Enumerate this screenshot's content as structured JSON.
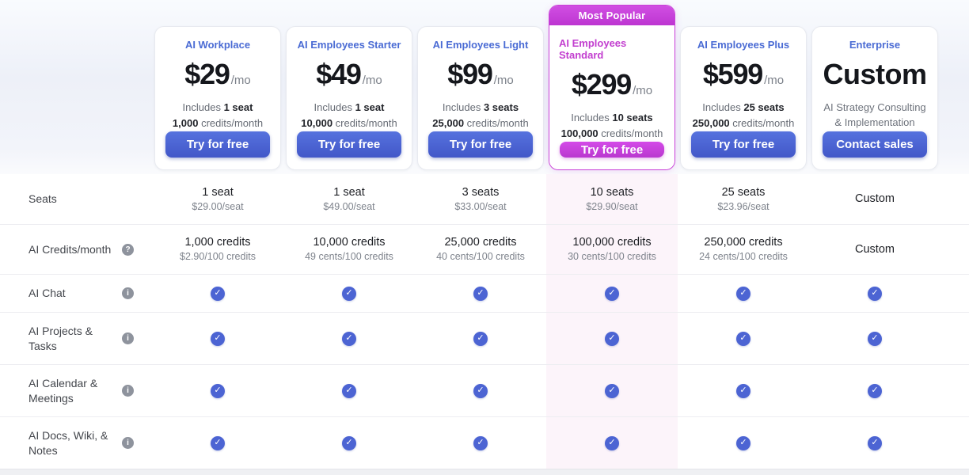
{
  "badge_label": "Most Popular",
  "icons": {
    "check": "✓",
    "info": "i",
    "help": "?"
  },
  "colors": {
    "accent_blue": "#4a66d4",
    "accent_magenta": "#c93fd6",
    "highlight_column_bg": "#fcf4fa",
    "check_circle": "#4c64d3"
  },
  "plans": [
    {
      "name": "AI Workplace",
      "price": "$29",
      "period": "/mo",
      "includes_prefix": "Includes",
      "includes_bold": "1 seat",
      "credits_bold": "1,000",
      "credits_suffix": "credits/month",
      "cta": "Try for free"
    },
    {
      "name": "AI Employees Starter",
      "price": "$49",
      "period": "/mo",
      "includes_prefix": "Includes",
      "includes_bold": "1 seat",
      "credits_bold": "10,000",
      "credits_suffix": "credits/month",
      "cta": "Try for free"
    },
    {
      "name": "AI Employees Light",
      "price": "$99",
      "period": "/mo",
      "includes_prefix": "Includes",
      "includes_bold": "3 seats",
      "credits_bold": "25,000",
      "credits_suffix": "credits/month",
      "cta": "Try for free"
    },
    {
      "name": "AI Employees Standard",
      "price": "$299",
      "period": "/mo",
      "includes_prefix": "Includes",
      "includes_bold": "10 seats",
      "credits_bold": "100,000",
      "credits_suffix": "credits/month",
      "cta": "Try for free"
    },
    {
      "name": "AI Employees Plus",
      "price": "$599",
      "period": "/mo",
      "includes_prefix": "Includes",
      "includes_bold": "25 seats",
      "credits_bold": "250,000",
      "credits_suffix": "credits/month",
      "cta": "Try for free"
    },
    {
      "name": "Enterprise",
      "price": "Custom",
      "subtitle": "AI Strategy Consulting & Implementation",
      "cta": "Contact sales"
    }
  ],
  "table": {
    "rows": [
      {
        "label": "Seats",
        "cells": [
          {
            "main": "1 seat",
            "sub": "$29.00/seat"
          },
          {
            "main": "1 seat",
            "sub": "$49.00/seat"
          },
          {
            "main": "3 seats",
            "sub": "$33.00/seat"
          },
          {
            "main": "10 seats",
            "sub": "$29.90/seat"
          },
          {
            "main": "25 seats",
            "sub": "$23.96/seat"
          },
          {
            "main": "Custom",
            "sub": ""
          }
        ]
      },
      {
        "label": "AI Credits/month",
        "cells": [
          {
            "main": "1,000 credits",
            "sub": "$2.90/100 credits"
          },
          {
            "main": "10,000 credits",
            "sub": "49 cents/100 credits"
          },
          {
            "main": "25,000 credits",
            "sub": "40 cents/100 credits"
          },
          {
            "main": "100,000 credits",
            "sub": "30 cents/100 credits"
          },
          {
            "main": "250,000 credits",
            "sub": "24 cents/100 credits"
          },
          {
            "main": "Custom",
            "sub": ""
          }
        ]
      },
      {
        "label": "AI Chat"
      },
      {
        "label": "AI Projects & Tasks"
      },
      {
        "label": "AI Calendar & Meetings"
      },
      {
        "label": "AI Docs, Wiki, & Notes"
      }
    ]
  }
}
